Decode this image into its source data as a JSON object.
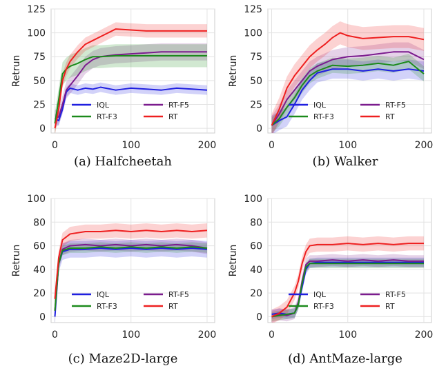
{
  "chart_data": [
    {
      "type": "line",
      "caption": "(a) Halfcheetah",
      "ylabel": "Retrun",
      "xlim": [
        -5,
        210
      ],
      "ylim": [
        -5,
        125
      ],
      "xticks": [
        0,
        100,
        200
      ],
      "yticks": [
        0,
        25,
        50,
        75,
        100,
        125
      ],
      "grid": true,
      "legend_position": "bottom-right",
      "series": [
        {
          "name": "IQL",
          "color": "#1f1fe0",
          "band": 5,
          "x": [
            0,
            5,
            10,
            15,
            20,
            30,
            40,
            50,
            60,
            80,
            100,
            120,
            140,
            160,
            180,
            200
          ],
          "y": [
            10,
            8,
            20,
            38,
            42,
            40,
            42,
            41,
            43,
            40,
            42,
            41,
            40,
            42,
            41,
            40
          ]
        },
        {
          "name": "RT-F5",
          "color": "#7b1c8e",
          "band": 9,
          "x": [
            0,
            5,
            10,
            15,
            20,
            30,
            40,
            50,
            60,
            80,
            100,
            120,
            140,
            160,
            180,
            200
          ],
          "y": [
            10,
            12,
            25,
            40,
            45,
            55,
            66,
            72,
            75,
            77,
            78,
            79,
            80,
            80,
            80,
            80
          ]
        },
        {
          "name": "RT-F3",
          "color": "#1b8a1b",
          "band": 12,
          "x": [
            0,
            5,
            10,
            15,
            20,
            30,
            40,
            50,
            60,
            80,
            100,
            120,
            140,
            160,
            180,
            200
          ],
          "y": [
            5,
            30,
            57,
            62,
            65,
            68,
            72,
            75,
            75,
            76,
            76,
            76,
            76,
            76,
            76,
            76
          ]
        },
        {
          "name": "RT",
          "color": "#ee1f1f",
          "band": 7,
          "x": [
            0,
            5,
            10,
            15,
            20,
            30,
            40,
            50,
            60,
            70,
            80,
            100,
            120,
            140,
            160,
            180,
            200
          ],
          "y": [
            0,
            20,
            50,
            62,
            70,
            80,
            88,
            92,
            96,
            100,
            104,
            103,
            102,
            102,
            102,
            102,
            102
          ]
        }
      ]
    },
    {
      "type": "line",
      "caption": "(b) Walker",
      "ylabel": "Retrun",
      "xlim": [
        -5,
        210
      ],
      "ylim": [
        -5,
        125
      ],
      "xticks": [
        0,
        100,
        200
      ],
      "yticks": [
        0,
        25,
        50,
        75,
        100,
        125
      ],
      "grid": true,
      "legend_position": "bottom-right",
      "series": [
        {
          "name": "IQL",
          "color": "#1f1fe0",
          "band": 10,
          "x": [
            0,
            10,
            20,
            30,
            40,
            50,
            60,
            80,
            100,
            120,
            140,
            160,
            180,
            200
          ],
          "y": [
            3,
            8,
            12,
            25,
            40,
            50,
            58,
            62,
            62,
            60,
            62,
            60,
            62,
            60
          ]
        },
        {
          "name": "RT-F5",
          "color": "#7b1c8e",
          "band": 10,
          "x": [
            0,
            10,
            20,
            30,
            40,
            50,
            60,
            80,
            100,
            120,
            140,
            160,
            180,
            200
          ],
          "y": [
            3,
            15,
            30,
            40,
            50,
            60,
            65,
            72,
            75,
            76,
            78,
            80,
            80,
            72
          ]
        },
        {
          "name": "RT-F3",
          "color": "#1b8a1b",
          "band": 8,
          "x": [
            0,
            10,
            20,
            30,
            40,
            50,
            60,
            80,
            100,
            120,
            140,
            160,
            180,
            200
          ],
          "y": [
            3,
            10,
            22,
            32,
            45,
            55,
            60,
            66,
            65,
            66,
            68,
            66,
            70,
            57
          ]
        },
        {
          "name": "RT",
          "color": "#ee1f1f",
          "band": 12,
          "x": [
            0,
            10,
            20,
            30,
            40,
            50,
            60,
            70,
            80,
            90,
            100,
            120,
            140,
            160,
            180,
            200
          ],
          "y": [
            3,
            20,
            42,
            55,
            65,
            75,
            82,
            88,
            95,
            100,
            97,
            94,
            95,
            96,
            96,
            93
          ]
        }
      ]
    },
    {
      "type": "line",
      "caption": "(c) Maze2D-large",
      "ylabel": "Retrun",
      "xlim": [
        -5,
        210
      ],
      "ylim": [
        -5,
        100
      ],
      "xticks": [
        0,
        100,
        200
      ],
      "yticks": [
        0,
        20,
        40,
        60,
        80,
        100
      ],
      "grid": true,
      "legend_position": "bottom-right",
      "series": [
        {
          "name": "IQL",
          "color": "#1f1fe0",
          "band": 7,
          "x": [
            0,
            5,
            10,
            20,
            40,
            60,
            80,
            100,
            120,
            140,
            160,
            180,
            200
          ],
          "y": [
            0,
            45,
            55,
            57,
            57,
            58,
            57,
            58,
            57,
            58,
            57,
            58,
            57
          ]
        },
        {
          "name": "RT-F5",
          "color": "#7b1c8e",
          "band": 5,
          "x": [
            0,
            5,
            10,
            20,
            40,
            60,
            80,
            100,
            120,
            140,
            160,
            180,
            200
          ],
          "y": [
            5,
            45,
            57,
            60,
            61,
            60,
            61,
            60,
            61,
            60,
            61,
            60,
            58
          ]
        },
        {
          "name": "RT-F3",
          "color": "#1b8a1b",
          "band": 4,
          "x": [
            0,
            5,
            10,
            20,
            40,
            60,
            80,
            100,
            120,
            140,
            160,
            180,
            200
          ],
          "y": [
            5,
            45,
            56,
            58,
            58,
            59,
            58,
            59,
            58,
            59,
            58,
            59,
            58
          ]
        },
        {
          "name": "RT",
          "color": "#ee1f1f",
          "band": 6,
          "x": [
            0,
            5,
            10,
            20,
            40,
            60,
            80,
            100,
            120,
            140,
            160,
            180,
            200
          ],
          "y": [
            15,
            50,
            65,
            70,
            72,
            72,
            73,
            72,
            73,
            72,
            73,
            72,
            73
          ]
        }
      ]
    },
    {
      "type": "line",
      "caption": "(d) AntMaze-large",
      "ylabel": "Retrun",
      "xlim": [
        -5,
        210
      ],
      "ylim": [
        -5,
        100
      ],
      "xticks": [
        0,
        100,
        200
      ],
      "yticks": [
        0,
        20,
        40,
        60,
        80,
        100
      ],
      "grid": true,
      "legend_position": "bottom-right",
      "series": [
        {
          "name": "IQL",
          "color": "#1f1fe0",
          "band": 4,
          "x": [
            0,
            10,
            20,
            30,
            35,
            40,
            45,
            50,
            60,
            80,
            100,
            120,
            140,
            160,
            180,
            200
          ],
          "y": [
            2,
            3,
            2,
            3,
            10,
            25,
            40,
            45,
            46,
            46,
            46,
            46,
            46,
            46,
            46,
            46
          ]
        },
        {
          "name": "RT-F5",
          "color": "#7b1c8e",
          "band": 5,
          "x": [
            0,
            10,
            20,
            30,
            35,
            40,
            45,
            50,
            60,
            80,
            100,
            120,
            140,
            160,
            180,
            200
          ],
          "y": [
            0,
            2,
            1,
            3,
            12,
            30,
            44,
            47,
            47,
            48,
            47,
            48,
            47,
            48,
            47,
            47
          ]
        },
        {
          "name": "RT-F3",
          "color": "#1b8a1b",
          "band": 4,
          "x": [
            0,
            10,
            20,
            30,
            35,
            40,
            45,
            50,
            60,
            80,
            100,
            120,
            140,
            160,
            180,
            200
          ],
          "y": [
            0,
            1,
            2,
            3,
            10,
            28,
            42,
            45,
            45,
            45,
            45,
            45,
            45,
            45,
            45,
            45
          ]
        },
        {
          "name": "RT",
          "color": "#ee1f1f",
          "band": 6,
          "x": [
            0,
            10,
            20,
            30,
            35,
            40,
            45,
            50,
            60,
            80,
            100,
            120,
            140,
            160,
            180,
            200
          ],
          "y": [
            0,
            3,
            8,
            20,
            30,
            45,
            55,
            60,
            61,
            61,
            62,
            61,
            62,
            61,
            62,
            62
          ]
        }
      ]
    }
  ]
}
